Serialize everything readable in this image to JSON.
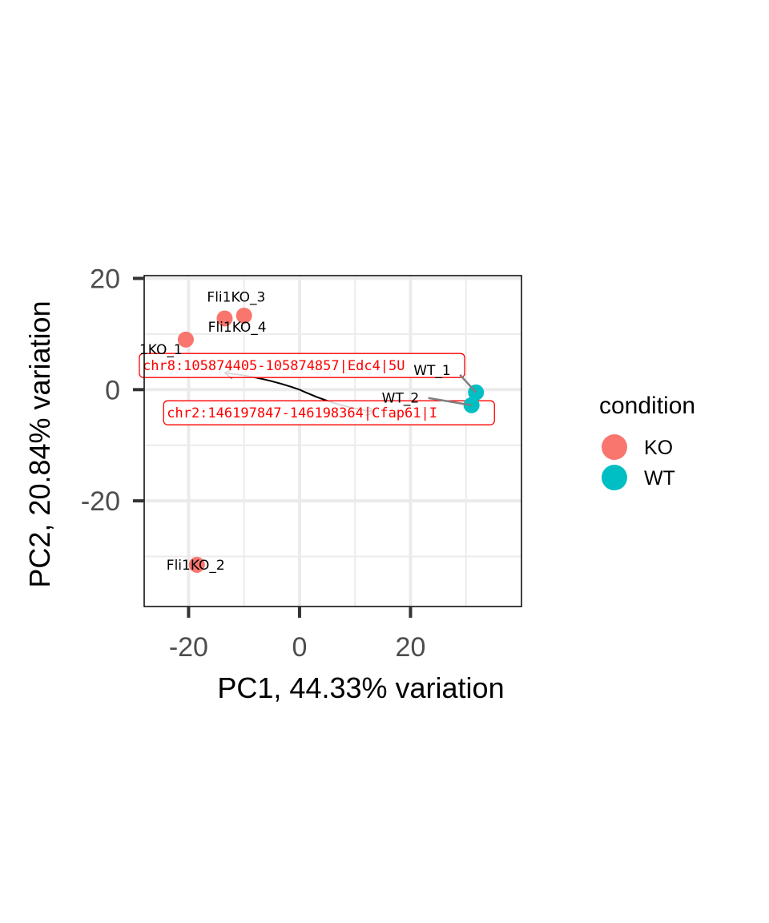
{
  "chart_data": {
    "type": "scatter",
    "xlabel": "PC1, 44.33% variation",
    "ylabel": "PC2, 20.84% variation",
    "xlim": [
      -28,
      40
    ],
    "ylim": [
      -39,
      20.5
    ],
    "x_ticks": [
      -20,
      0,
      20
    ],
    "y_ticks": [
      -20,
      0,
      20
    ],
    "grid": true,
    "points": [
      {
        "label": "Fli1KO_1",
        "shown_label": "1KO_1",
        "x": -20.5,
        "y": 9.0,
        "group": "KO"
      },
      {
        "label": "Fli1KO_2",
        "shown_label": "Fli1KO_2",
        "x": -18.5,
        "y": -31.5,
        "group": "KO"
      },
      {
        "label": "Fli1KO_3",
        "shown_label": "Fli1KO_3",
        "x": -13.5,
        "y": 12.8,
        "group": "KO"
      },
      {
        "label": "Fli1KO_4",
        "shown_label": "Fli1KO_4",
        "x": -10.0,
        "y": 13.3,
        "group": "KO"
      },
      {
        "label": "WT_1",
        "shown_label": "WT_1",
        "x": 31.8,
        "y": -0.5,
        "group": "WT"
      },
      {
        "label": "WT_2",
        "shown_label": "WT_2",
        "x": 31.0,
        "y": -2.8,
        "group": "WT"
      }
    ],
    "loadings": [
      {
        "label": "chr8:105874405-105874857|Edc4|5U",
        "x_end": -13.5,
        "y_end": 3.0
      },
      {
        "label": "chr2:146197847-146198364|Cfap61|I",
        "x_end": 13.5,
        "y_end": -4.0
      }
    ],
    "legend": {
      "title": "condition",
      "placement": "right",
      "items": [
        {
          "name": "KO",
          "color": "#F8766D"
        },
        {
          "name": "WT",
          "color": "#00BFC4"
        }
      ]
    }
  }
}
